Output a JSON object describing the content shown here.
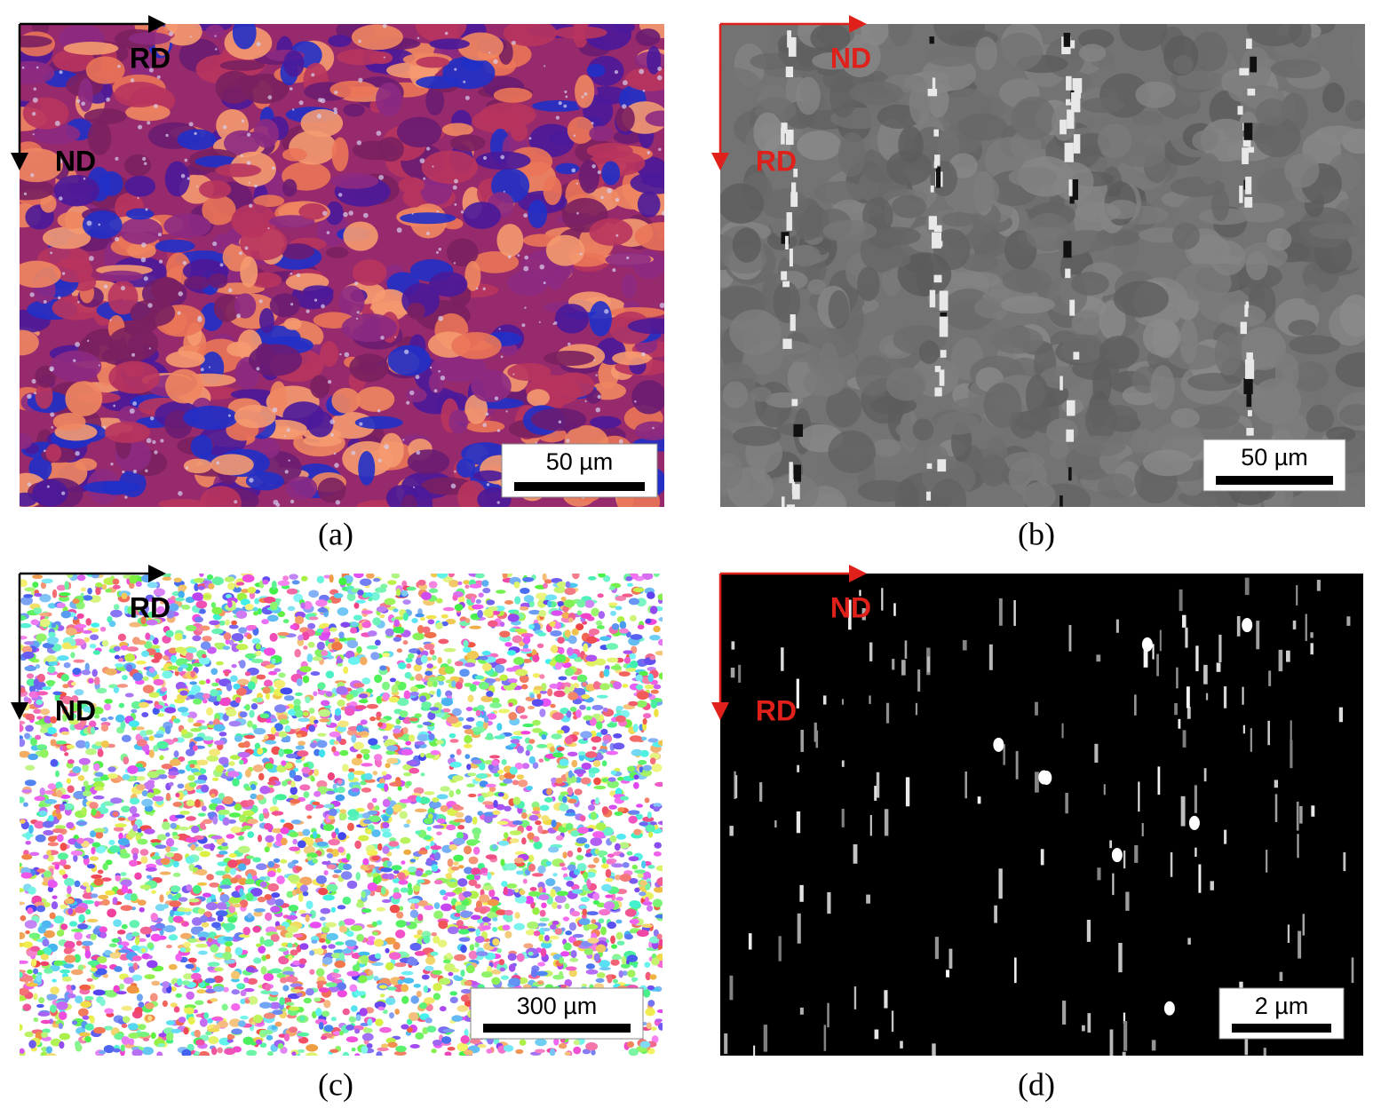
{
  "panels": [
    {
      "caption": "(a)",
      "scale_bar": "50 µm",
      "horizontal_axis": "RD",
      "vertical_axis": "ND"
    },
    {
      "caption": "(b)",
      "scale_bar": "50 µm",
      "horizontal_axis": "ND",
      "vertical_axis": "RD"
    },
    {
      "caption": "(c)",
      "scale_bar": "300 µm",
      "horizontal_axis": "RD",
      "vertical_axis": "ND"
    },
    {
      "caption": "(d)",
      "scale_bar": "2 µm",
      "horizontal_axis": "ND",
      "vertical_axis": "RD"
    }
  ]
}
